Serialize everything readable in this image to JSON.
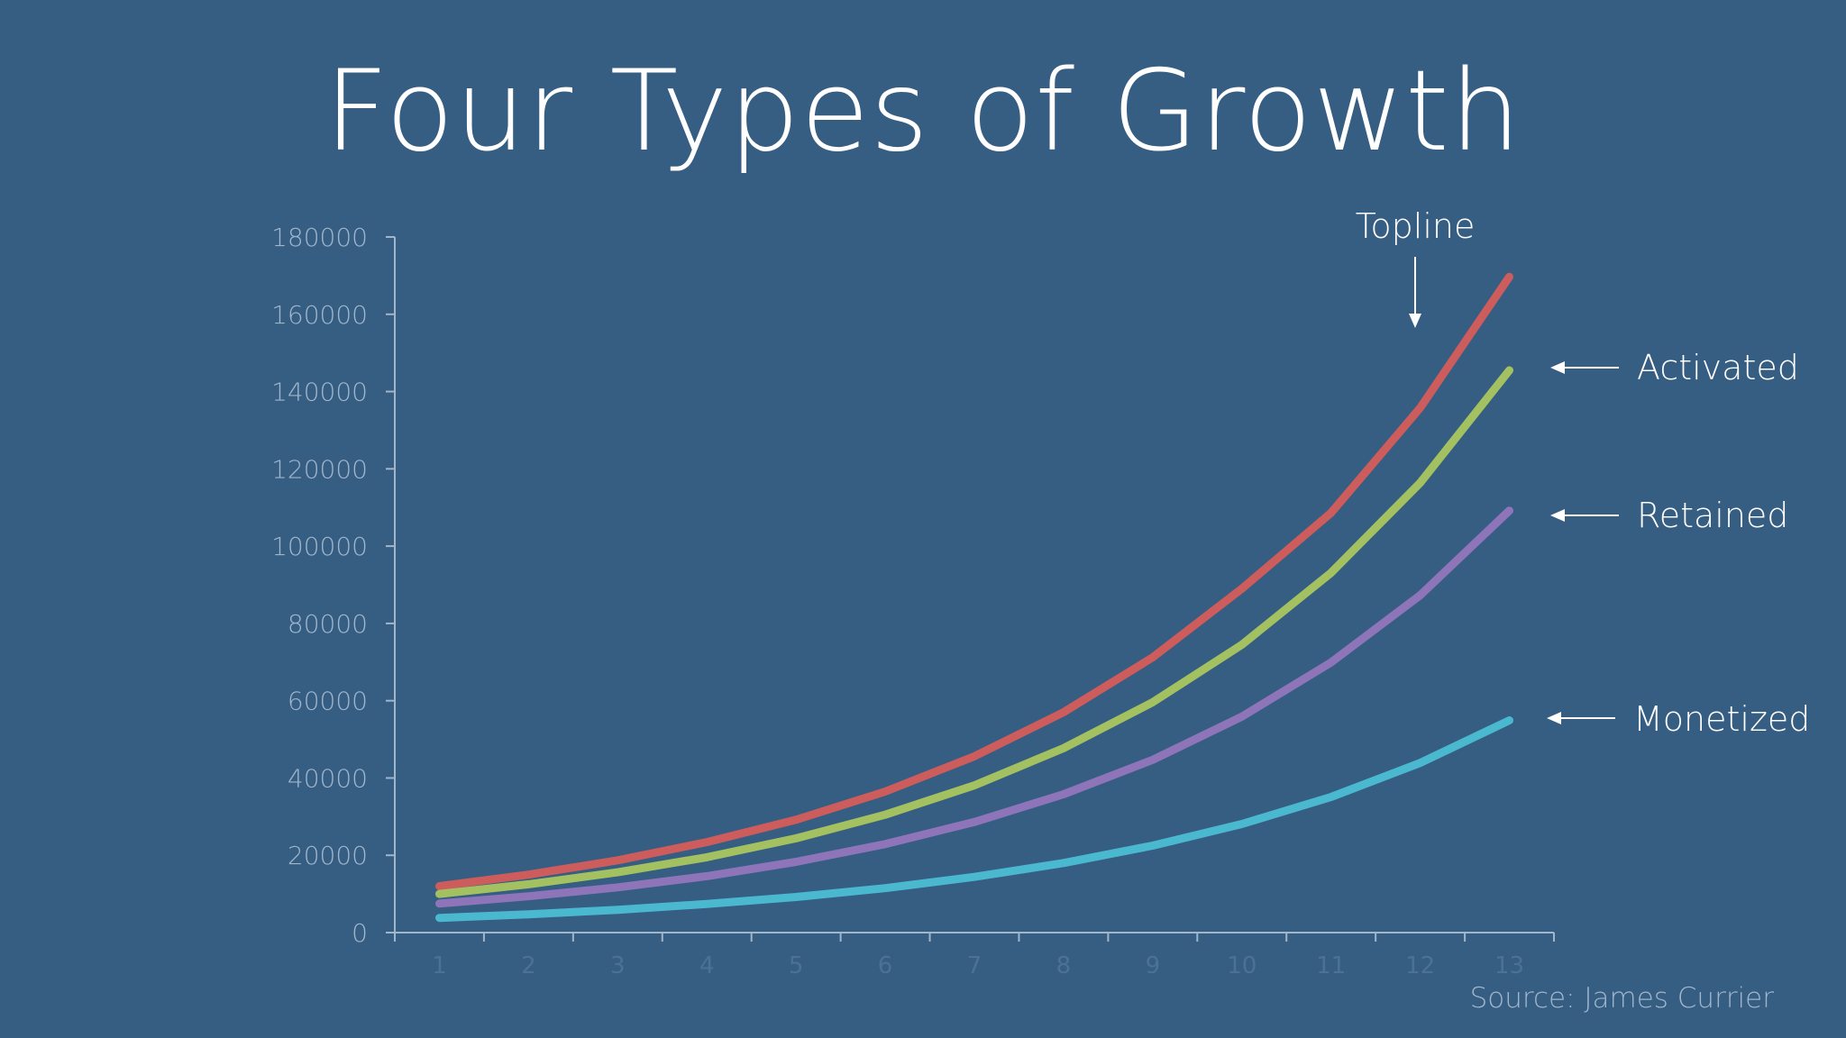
{
  "slide": {
    "title": "Four Types of Growth",
    "source": "Source: James Currier"
  },
  "colors": {
    "background": "#365d82",
    "axis": "#9fb6cc",
    "text": "#ffffff"
  },
  "chart_data": {
    "type": "line",
    "title": "Four Types of Growth",
    "x": [
      1,
      2,
      3,
      4,
      5,
      6,
      7,
      8,
      9,
      10,
      11,
      12,
      13
    ],
    "ylim": [
      0,
      180000
    ],
    "yticks": [
      0,
      20000,
      40000,
      60000,
      80000,
      100000,
      120000,
      140000,
      160000,
      180000
    ],
    "grid": false,
    "series": [
      {
        "name": "Topline",
        "color": "#cd5c5c",
        "values": [
          12000,
          15000,
          18700,
          23400,
          29200,
          36500,
          45600,
          57000,
          71200,
          89000,
          108600,
          135800,
          169700
        ]
      },
      {
        "name": "Activated",
        "color": "#a3c160",
        "values": [
          10000,
          12500,
          15600,
          19500,
          24400,
          30500,
          38100,
          47700,
          59600,
          74500,
          93100,
          116400,
          145500
        ]
      },
      {
        "name": "Retained",
        "color": "#8e74b8",
        "values": [
          7500,
          9400,
          11700,
          14600,
          18300,
          22900,
          28600,
          35800,
          44700,
          55900,
          69900,
          87300,
          109200
        ]
      },
      {
        "name": "Monetized",
        "color": "#4ab8cf",
        "values": [
          3800,
          4700,
          5900,
          7400,
          9200,
          11500,
          14400,
          18000,
          22500,
          28100,
          35100,
          43900,
          54900
        ]
      }
    ],
    "annotations": [
      "Topline",
      "Activated",
      "Retained",
      "Monetized"
    ]
  }
}
